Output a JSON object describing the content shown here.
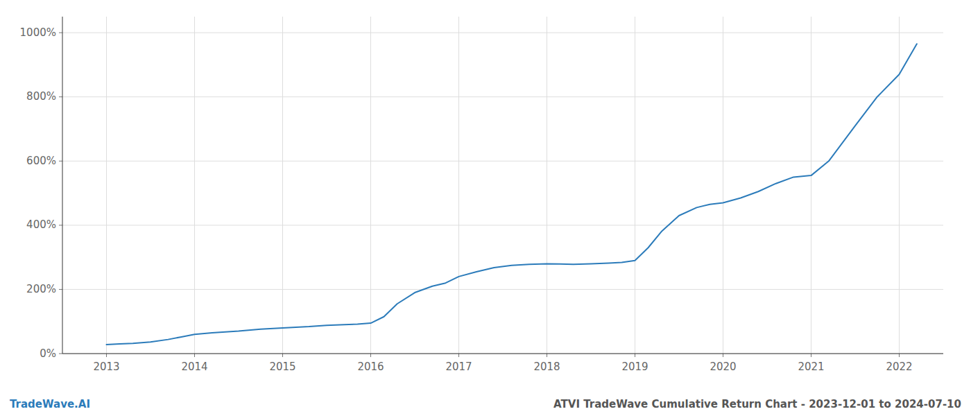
{
  "chart_data": {
    "type": "line",
    "title": "ATVI TradeWave Cumulative Return Chart - 2023-12-01 to 2024-07-10",
    "annotations": [
      "TradeWave.AI"
    ],
    "color": "#2b7bba",
    "grid": true,
    "x": [
      2013.0,
      2013.15,
      2013.3,
      2013.5,
      2013.7,
      2013.85,
      2014.0,
      2014.2,
      2014.5,
      2014.75,
      2015.0,
      2015.15,
      2015.3,
      2015.5,
      2015.7,
      2015.85,
      2016.0,
      2016.15,
      2016.3,
      2016.5,
      2016.7,
      2016.85,
      2017.0,
      2017.2,
      2017.4,
      2017.6,
      2017.8,
      2018.0,
      2018.15,
      2018.3,
      2018.5,
      2018.7,
      2018.85,
      2019.0,
      2019.15,
      2019.3,
      2019.5,
      2019.7,
      2019.85,
      2020.0,
      2020.2,
      2020.4,
      2020.6,
      2020.8,
      2021.0,
      2021.2,
      2021.5,
      2021.75,
      2022.0,
      2022.2
    ],
    "values": [
      28,
      30,
      32,
      36,
      44,
      52,
      60,
      65,
      70,
      76,
      80,
      82,
      84,
      88,
      90,
      92,
      95,
      115,
      155,
      190,
      210,
      220,
      240,
      255,
      268,
      275,
      278,
      280,
      279,
      278,
      280,
      282,
      284,
      290,
      330,
      380,
      430,
      455,
      465,
      470,
      485,
      505,
      530,
      550,
      555,
      600,
      710,
      800,
      870,
      965
    ],
    "xlim": [
      2012.5,
      2022.5
    ],
    "xticks": [
      2013,
      2014,
      2015,
      2016,
      2017,
      2018,
      2019,
      2020,
      2021,
      2022
    ],
    "ylim": [
      0,
      1050
    ],
    "yticks": [
      {
        "value": 0,
        "label": "0%"
      },
      {
        "value": 200,
        "label": "200%"
      },
      {
        "value": 400,
        "label": "400%"
      },
      {
        "value": 600,
        "label": "600%"
      },
      {
        "value": 800,
        "label": "800%"
      },
      {
        "value": 1000,
        "label": "1000%"
      }
    ]
  }
}
